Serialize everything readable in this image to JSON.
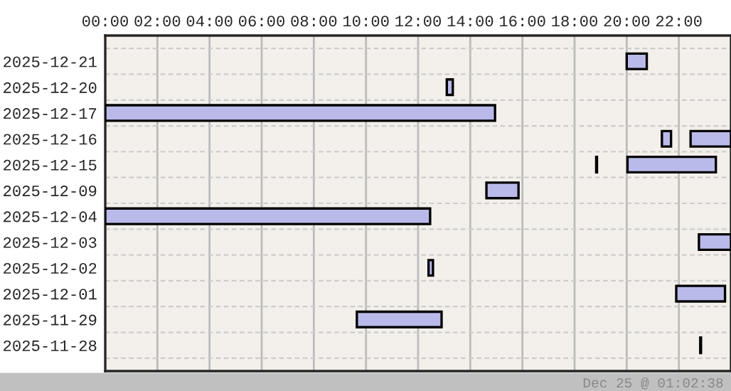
{
  "chart_data": {
    "type": "bar",
    "orientation": "horizontal",
    "categories": [
      "2025-12-21",
      "2025-12-20",
      "2025-12-17",
      "2025-12-16",
      "2025-12-15",
      "2025-12-09",
      "2025-12-04",
      "2025-12-03",
      "2025-12-02",
      "2025-12-01",
      "2025-11-29",
      "2025-11-28"
    ],
    "series": [
      {
        "color": "#babaea",
        "base": [
          20.0,
          13.1,
          0,
          21.35,
          18.83,
          14.62,
          0,
          22.77,
          12.4,
          21.9,
          9.65,
          22.82
        ],
        "values": [
          0.77,
          0.23,
          14.95,
          0.35,
          0.03,
          1.23,
          12.46,
          1.23,
          0.17,
          1.87,
          3.25,
          0.03
        ]
      },
      {
        "color": "#babaea",
        "base": [
          null,
          null,
          null,
          22.45,
          20.03,
          null,
          null,
          null,
          null,
          null,
          null,
          null
        ],
        "values": [
          null,
          null,
          null,
          1.55,
          3.39,
          null,
          null,
          null,
          null,
          null,
          null,
          null
        ]
      }
    ],
    "xlim": [
      0,
      24
    ],
    "xticks": [
      {
        "value": 0,
        "label": "00:00"
      },
      {
        "value": 2,
        "label": "02:00"
      },
      {
        "value": 4,
        "label": "04:00"
      },
      {
        "value": 6,
        "label": "06:00"
      },
      {
        "value": 8,
        "label": "08:00"
      },
      {
        "value": 10,
        "label": "10:00"
      },
      {
        "value": 12,
        "label": "12:00"
      },
      {
        "value": 14,
        "label": "14:00"
      },
      {
        "value": 16,
        "label": "16:00"
      },
      {
        "value": 18,
        "label": "18:00"
      },
      {
        "value": 20,
        "label": "20:00"
      },
      {
        "value": 22,
        "label": "22:00"
      }
    ],
    "grid": true,
    "annotations": [
      "Dec 25 @ 01:02:38"
    ]
  }
}
